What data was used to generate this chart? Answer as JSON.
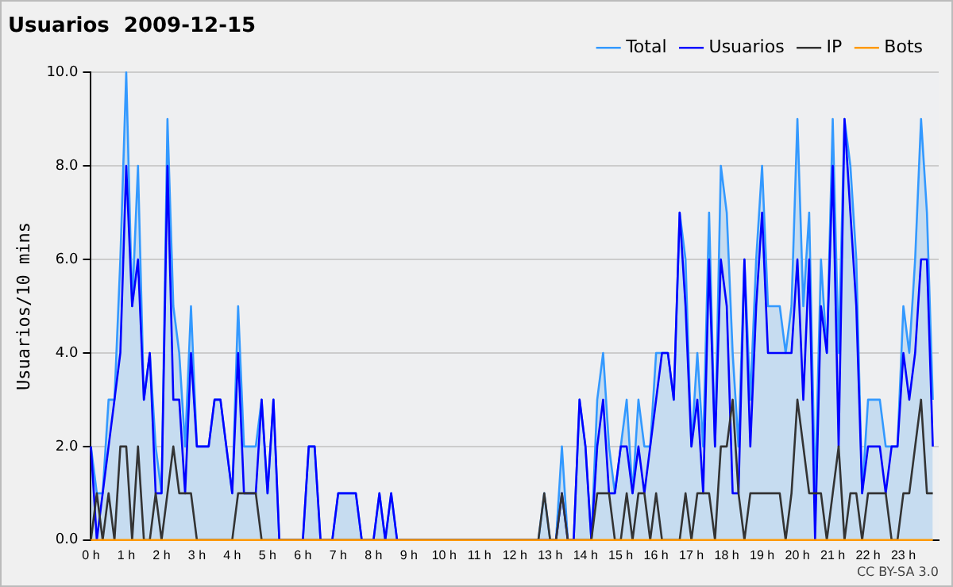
{
  "chart_data": {
    "type": "line",
    "title": "Usuarios  2009-12-15",
    "ylabel": "Usuarios/10 mins",
    "annotations": [
      "CC BY-SA 3.0"
    ],
    "x": [
      0,
      0.167,
      0.333,
      0.5,
      0.667,
      0.833,
      1,
      1.167,
      1.333,
      1.5,
      1.667,
      1.833,
      2,
      2.167,
      2.333,
      2.5,
      2.667,
      2.833,
      3,
      3.167,
      3.333,
      3.5,
      3.667,
      3.833,
      4,
      4.167,
      4.333,
      4.5,
      4.667,
      4.833,
      5,
      5.167,
      5.333,
      5.5,
      5.667,
      5.833,
      6,
      6.167,
      6.333,
      6.5,
      6.667,
      6.833,
      7,
      7.167,
      7.333,
      7.5,
      7.667,
      7.833,
      8,
      8.167,
      8.333,
      8.5,
      8.667,
      8.833,
      9,
      9.167,
      9.333,
      9.5,
      9.667,
      9.833,
      10,
      10.167,
      10.333,
      10.5,
      10.667,
      10.833,
      11,
      11.167,
      11.333,
      11.5,
      11.667,
      11.833,
      12,
      12.167,
      12.333,
      12.5,
      12.667,
      12.833,
      13,
      13.167,
      13.333,
      13.5,
      13.667,
      13.833,
      14,
      14.167,
      14.333,
      14.5,
      14.667,
      14.833,
      15,
      15.167,
      15.333,
      15.5,
      15.667,
      15.833,
      16,
      16.167,
      16.333,
      16.5,
      16.667,
      16.833,
      17,
      17.167,
      17.333,
      17.5,
      17.667,
      17.833,
      18,
      18.167,
      18.333,
      18.5,
      18.667,
      18.833,
      19,
      19.167,
      19.333,
      19.5,
      19.667,
      19.833,
      20,
      20.167,
      20.333,
      20.5,
      20.667,
      20.833,
      21,
      21.167,
      21.333,
      21.5,
      21.667,
      21.833,
      22,
      22.167,
      22.333,
      22.5,
      22.667,
      22.833,
      23,
      23.167,
      23.333,
      23.5,
      23.667,
      23.833
    ],
    "series": [
      {
        "name": "Total",
        "type": "area",
        "color": "#3399ff",
        "values": [
          2,
          1,
          1,
          3,
          3,
          6,
          10,
          5,
          8,
          3,
          4,
          2,
          1,
          9,
          5,
          4,
          2,
          5,
          2,
          2,
          2,
          3,
          3,
          2,
          1,
          5,
          2,
          2,
          2,
          3,
          1,
          3,
          0,
          0,
          0,
          0,
          0,
          2,
          2,
          0,
          0,
          0,
          1,
          1,
          1,
          1,
          0,
          0,
          0,
          1,
          0,
          1,
          0,
          0,
          0,
          0,
          0,
          0,
          0,
          0,
          0,
          0,
          0,
          0,
          0,
          0,
          0,
          0,
          0,
          0,
          0,
          0,
          0,
          0,
          0,
          0,
          0,
          1,
          0,
          0,
          2,
          0,
          0,
          3,
          2,
          0,
          3,
          4,
          2,
          1,
          2,
          3,
          1,
          3,
          2,
          2,
          4,
          4,
          4,
          3,
          7,
          6,
          2,
          4,
          2,
          7,
          2,
          8,
          7,
          4,
          2,
          6,
          3,
          6,
          8,
          5,
          5,
          5,
          4,
          5,
          9,
          5,
          7,
          1,
          6,
          4,
          9,
          4,
          9,
          8,
          6,
          1,
          3,
          3,
          3,
          2,
          2,
          2,
          5,
          4,
          6,
          9,
          7,
          3
        ]
      },
      {
        "name": "Usuarios",
        "type": "line",
        "color": "#0000ff",
        "values": [
          2,
          0,
          1,
          2,
          3,
          4,
          8,
          5,
          6,
          3,
          4,
          1,
          1,
          8,
          3,
          3,
          1,
          4,
          2,
          2,
          2,
          3,
          3,
          2,
          1,
          4,
          1,
          1,
          1,
          3,
          1,
          3,
          0,
          0,
          0,
          0,
          0,
          2,
          2,
          0,
          0,
          0,
          1,
          1,
          1,
          1,
          0,
          0,
          0,
          1,
          0,
          1,
          0,
          0,
          0,
          0,
          0,
          0,
          0,
          0,
          0,
          0,
          0,
          0,
          0,
          0,
          0,
          0,
          0,
          0,
          0,
          0,
          0,
          0,
          0,
          0,
          0,
          0,
          0,
          0,
          1,
          0,
          0,
          3,
          2,
          0,
          2,
          3,
          1,
          1,
          2,
          2,
          1,
          2,
          1,
          2,
          3,
          4,
          4,
          3,
          7,
          5,
          2,
          3,
          1,
          6,
          2,
          6,
          5,
          1,
          1,
          6,
          2,
          5,
          7,
          4,
          4,
          4,
          4,
          4,
          6,
          3,
          6,
          0,
          5,
          4,
          8,
          2,
          9,
          7,
          5,
          1,
          2,
          2,
          2,
          1,
          2,
          2,
          4,
          3,
          4,
          6,
          6,
          2
        ]
      },
      {
        "name": "IP",
        "type": "line",
        "color": "#333333",
        "values": [
          0,
          1,
          0,
          1,
          0,
          2,
          2,
          0,
          2,
          0,
          0,
          1,
          0,
          1,
          2,
          1,
          1,
          1,
          0,
          0,
          0,
          0,
          0,
          0,
          0,
          1,
          1,
          1,
          1,
          0,
          0,
          0,
          0,
          0,
          0,
          0,
          0,
          0,
          0,
          0,
          0,
          0,
          0,
          0,
          0,
          0,
          0,
          0,
          0,
          0,
          0,
          0,
          0,
          0,
          0,
          0,
          0,
          0,
          0,
          0,
          0,
          0,
          0,
          0,
          0,
          0,
          0,
          0,
          0,
          0,
          0,
          0,
          0,
          0,
          0,
          0,
          0,
          1,
          0,
          0,
          1,
          0,
          0,
          0,
          0,
          0,
          1,
          1,
          1,
          0,
          0,
          1,
          0,
          1,
          1,
          0,
          1,
          0,
          0,
          0,
          0,
          1,
          0,
          1,
          1,
          1,
          0,
          2,
          2,
          3,
          1,
          0,
          1,
          1,
          1,
          1,
          1,
          1,
          0,
          1,
          3,
          2,
          1,
          1,
          1,
          0,
          1,
          2,
          0,
          1,
          1,
          0,
          1,
          1,
          1,
          1,
          0,
          0,
          1,
          1,
          2,
          3,
          1,
          1
        ]
      },
      {
        "name": "Bots",
        "type": "line",
        "color": "#ff9900",
        "values": [
          0,
          0,
          0,
          0,
          0,
          0,
          0,
          0,
          0,
          0,
          0,
          0,
          0,
          0,
          0,
          0,
          0,
          0,
          0,
          0,
          0,
          0,
          0,
          0,
          0,
          0,
          0,
          0,
          0,
          0,
          0,
          0,
          0,
          0,
          0,
          0,
          0,
          0,
          0,
          0,
          0,
          0,
          0,
          0,
          0,
          0,
          0,
          0,
          0,
          0,
          0,
          0,
          0,
          0,
          0,
          0,
          0,
          0,
          0,
          0,
          0,
          0,
          0,
          0,
          0,
          0,
          0,
          0,
          0,
          0,
          0,
          0,
          0,
          0,
          0,
          0,
          0,
          0,
          0,
          0,
          0,
          0,
          0,
          0,
          0,
          0,
          0,
          0,
          0,
          0,
          0,
          0,
          0,
          0,
          0,
          0,
          0,
          0,
          0,
          0,
          0,
          0,
          0,
          0,
          0,
          0,
          0,
          0,
          0,
          0,
          0,
          0,
          0,
          0,
          0,
          0,
          0,
          0,
          0,
          0,
          0,
          0,
          0,
          0,
          0,
          0,
          0,
          0,
          0,
          0,
          0,
          0,
          0,
          0,
          0,
          0,
          0,
          0,
          0,
          0,
          0,
          0,
          0,
          0
        ]
      }
    ],
    "xlim": [
      0,
      24
    ],
    "xticks": [
      {
        "value": 0,
        "label": "0 h"
      },
      {
        "value": 1,
        "label": "1 h"
      },
      {
        "value": 2,
        "label": "2 h"
      },
      {
        "value": 3,
        "label": "3 h"
      },
      {
        "value": 4,
        "label": "4 h"
      },
      {
        "value": 5,
        "label": "5 h"
      },
      {
        "value": 6,
        "label": "6 h"
      },
      {
        "value": 7,
        "label": "7 h"
      },
      {
        "value": 8,
        "label": "8 h"
      },
      {
        "value": 9,
        "label": "9 h"
      },
      {
        "value": 10,
        "label": "10 h"
      },
      {
        "value": 11,
        "label": "11 h"
      },
      {
        "value": 12,
        "label": "12 h"
      },
      {
        "value": 13,
        "label": "13 h"
      },
      {
        "value": 14,
        "label": "14 h"
      },
      {
        "value": 15,
        "label": "15 h"
      },
      {
        "value": 16,
        "label": "16 h"
      },
      {
        "value": 17,
        "label": "17 h"
      },
      {
        "value": 18,
        "label": "18 h"
      },
      {
        "value": 19,
        "label": "19 h"
      },
      {
        "value": 20,
        "label": "20 h"
      },
      {
        "value": 21,
        "label": "21 h"
      },
      {
        "value": 22,
        "label": "22 h"
      },
      {
        "value": 23,
        "label": "23 h"
      }
    ],
    "ylim": [
      0,
      10
    ],
    "yticks": [
      {
        "value": 0,
        "label": "0.0"
      },
      {
        "value": 2,
        "label": "2.0"
      },
      {
        "value": 4,
        "label": "4.0"
      },
      {
        "value": 6,
        "label": "6.0"
      },
      {
        "value": 8,
        "label": "8.0"
      },
      {
        "value": 10,
        "label": "10.0"
      }
    ],
    "grid": "y",
    "legend": "top right",
    "marker": "none",
    "line_style": "solid"
  }
}
